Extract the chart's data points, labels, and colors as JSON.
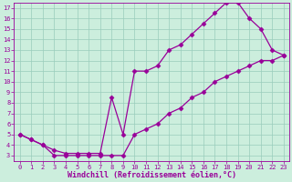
{
  "xlabel": "Windchill (Refroidissement éolien,°C)",
  "bg_color": "#cceedd",
  "line_color": "#990099",
  "marker": "D",
  "markersize": 2.5,
  "linewidth": 0.9,
  "upper_x": [
    0,
    1,
    2,
    3,
    4,
    5,
    6,
    7,
    8,
    9,
    10,
    11,
    12,
    13,
    14,
    15,
    16,
    17,
    18,
    19,
    20,
    21,
    22,
    23
  ],
  "upper_y": [
    5.0,
    4.5,
    4.0,
    3.5,
    3.2,
    3.2,
    3.2,
    3.2,
    8.5,
    5.0,
    11.0,
    11.0,
    11.5,
    13.0,
    13.5,
    14.5,
    15.5,
    16.5,
    17.5,
    17.5,
    16.0,
    15.0,
    13.0,
    12.5
  ],
  "lower_x": [
    0,
    1,
    2,
    3,
    4,
    5,
    6,
    7,
    8,
    9,
    10,
    11,
    12,
    13,
    14,
    15,
    16,
    17,
    18,
    19,
    20,
    21,
    22,
    23
  ],
  "lower_y": [
    5.0,
    4.5,
    4.0,
    3.0,
    3.0,
    3.0,
    3.0,
    3.0,
    3.0,
    3.0,
    5.0,
    5.5,
    6.0,
    7.0,
    7.5,
    8.5,
    9.0,
    10.0,
    10.5,
    11.0,
    11.5,
    12.0,
    12.0,
    12.5
  ],
  "xlim": [
    -0.5,
    23.5
  ],
  "ylim": [
    2.5,
    17.5
  ],
  "yticks": [
    3,
    4,
    5,
    6,
    7,
    8,
    9,
    10,
    11,
    12,
    13,
    14,
    15,
    16,
    17
  ],
  "xticks": [
    0,
    1,
    2,
    3,
    4,
    5,
    6,
    7,
    8,
    9,
    10,
    11,
    12,
    13,
    14,
    15,
    16,
    17,
    18,
    19,
    20,
    21,
    22,
    23
  ],
  "tick_fontsize": 5,
  "xlabel_fontsize": 6,
  "grid_color": "#99ccbb",
  "grid_linewidth": 0.5
}
